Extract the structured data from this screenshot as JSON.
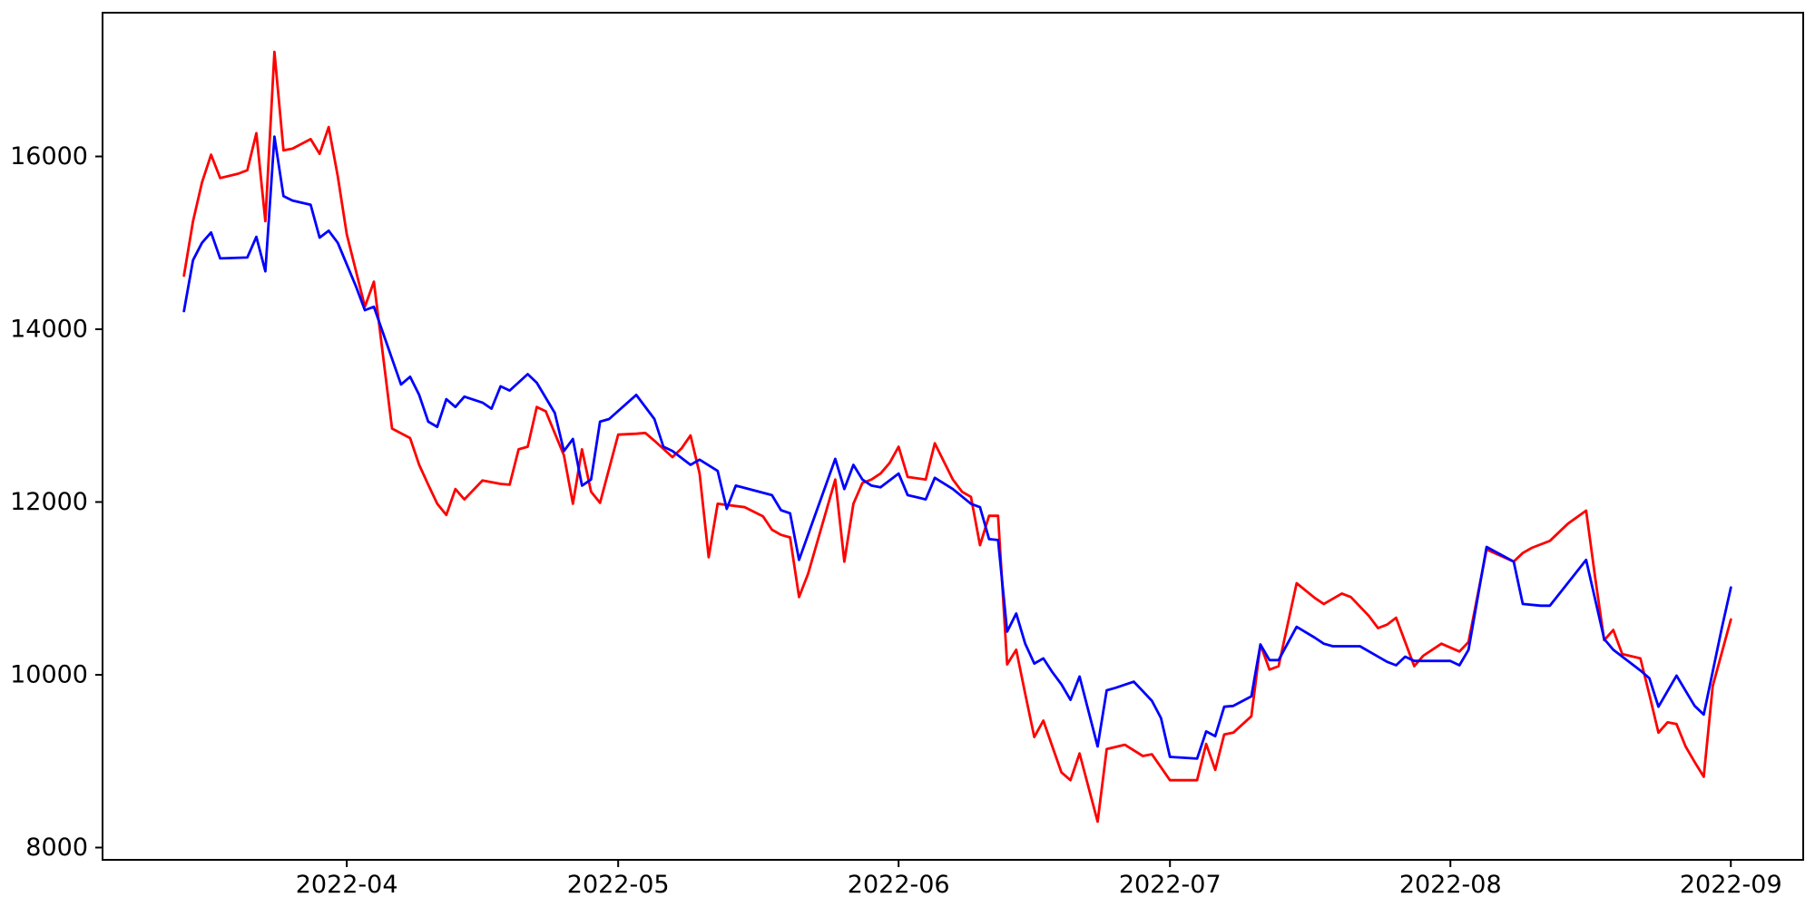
{
  "figure": {
    "background": "#ffffff",
    "axes_edge_color": "#000000"
  },
  "chart_data": {
    "type": "line",
    "title": "",
    "xlabel": "",
    "ylabel": "",
    "grid": false,
    "legend": "none",
    "ylim": [
      7858,
      17664
    ],
    "xlim": [
      "2022-03-05T12:00:00Z",
      "2022-09-09T12:00:00Z"
    ],
    "y_ticks": [
      8000,
      10000,
      12000,
      14000,
      16000
    ],
    "x_ticks": [
      "2022-04-01",
      "2022-05-01",
      "2022-06-01",
      "2022-07-01",
      "2022-08-01",
      "2022-09-01"
    ],
    "x_tick_labels": [
      "2022-04",
      "2022-05",
      "2022-06",
      "2022-07",
      "2022-08",
      "2022-09"
    ],
    "series": [
      {
        "name": "red-series",
        "color": "#ff0000",
        "points": [
          [
            "2022-03-14",
            14620
          ],
          [
            "2022-03-15",
            15250
          ],
          [
            "2022-03-16",
            15700
          ],
          [
            "2022-03-17",
            16020
          ],
          [
            "2022-03-18",
            15750
          ],
          [
            "2022-03-20",
            15800
          ],
          [
            "2022-03-21",
            15840
          ],
          [
            "2022-03-22",
            16270
          ],
          [
            "2022-03-23",
            15250
          ],
          [
            "2022-03-24",
            17210
          ],
          [
            "2022-03-25",
            16070
          ],
          [
            "2022-03-26",
            16090
          ],
          [
            "2022-03-28",
            16200
          ],
          [
            "2022-03-29",
            16030
          ],
          [
            "2022-03-30",
            16340
          ],
          [
            "2022-03-31",
            15770
          ],
          [
            "2022-04-01",
            15100
          ],
          [
            "2022-04-02",
            14680
          ],
          [
            "2022-04-03",
            14260
          ],
          [
            "2022-04-04",
            14550
          ],
          [
            "2022-04-06",
            12850
          ],
          [
            "2022-04-08",
            12740
          ],
          [
            "2022-04-09",
            12430
          ],
          [
            "2022-04-10",
            12200
          ],
          [
            "2022-04-11",
            11980
          ],
          [
            "2022-04-12",
            11850
          ],
          [
            "2022-04-13",
            12150
          ],
          [
            "2022-04-14",
            12030
          ],
          [
            "2022-04-16",
            12250
          ],
          [
            "2022-04-18",
            12210
          ],
          [
            "2022-04-19",
            12200
          ],
          [
            "2022-04-20",
            12610
          ],
          [
            "2022-04-21",
            12640
          ],
          [
            "2022-04-22",
            13100
          ],
          [
            "2022-04-23",
            13050
          ],
          [
            "2022-04-25",
            12540
          ],
          [
            "2022-04-26",
            11980
          ],
          [
            "2022-04-27",
            12610
          ],
          [
            "2022-04-28",
            12120
          ],
          [
            "2022-04-29",
            11990
          ],
          [
            "2022-05-01",
            12780
          ],
          [
            "2022-05-03",
            12790
          ],
          [
            "2022-05-04",
            12800
          ],
          [
            "2022-05-05",
            12710
          ],
          [
            "2022-05-07",
            12520
          ],
          [
            "2022-05-08",
            12620
          ],
          [
            "2022-05-09",
            12770
          ],
          [
            "2022-05-10",
            12330
          ],
          [
            "2022-05-11",
            11360
          ],
          [
            "2022-05-12",
            11980
          ],
          [
            "2022-05-15",
            11940
          ],
          [
            "2022-05-17",
            11835
          ],
          [
            "2022-05-18",
            11680
          ],
          [
            "2022-05-19",
            11620
          ],
          [
            "2022-05-20",
            11590
          ],
          [
            "2022-05-21",
            10900
          ],
          [
            "2022-05-22",
            11170
          ],
          [
            "2022-05-25",
            12260
          ],
          [
            "2022-05-26",
            11310
          ],
          [
            "2022-05-27",
            11980
          ],
          [
            "2022-05-28",
            12220
          ],
          [
            "2022-05-29",
            12260
          ],
          [
            "2022-05-30",
            12330
          ],
          [
            "2022-05-31",
            12450
          ],
          [
            "2022-06-01",
            12640
          ],
          [
            "2022-06-02",
            12290
          ],
          [
            "2022-06-04",
            12260
          ],
          [
            "2022-06-05",
            12680
          ],
          [
            "2022-06-06",
            12470
          ],
          [
            "2022-06-07",
            12260
          ],
          [
            "2022-06-08",
            12120
          ],
          [
            "2022-06-09",
            12060
          ],
          [
            "2022-06-10",
            11500
          ],
          [
            "2022-06-11",
            11840
          ],
          [
            "2022-06-12",
            11840
          ],
          [
            "2022-06-13",
            10120
          ],
          [
            "2022-06-14",
            10290
          ],
          [
            "2022-06-15",
            9780
          ],
          [
            "2022-06-16",
            9280
          ],
          [
            "2022-06-17",
            9470
          ],
          [
            "2022-06-18",
            9170
          ],
          [
            "2022-06-19",
            8870
          ],
          [
            "2022-06-20",
            8780
          ],
          [
            "2022-06-21",
            9090
          ],
          [
            "2022-06-23",
            8300
          ],
          [
            "2022-06-24",
            9140
          ],
          [
            "2022-06-26",
            9190
          ],
          [
            "2022-06-28",
            9060
          ],
          [
            "2022-06-29",
            9080
          ],
          [
            "2022-07-01",
            8780
          ],
          [
            "2022-07-04",
            8780
          ],
          [
            "2022-07-05",
            9200
          ],
          [
            "2022-07-06",
            8900
          ],
          [
            "2022-07-07",
            9310
          ],
          [
            "2022-07-08",
            9330
          ],
          [
            "2022-07-10",
            9520
          ],
          [
            "2022-07-11",
            10350
          ],
          [
            "2022-07-12",
            10060
          ],
          [
            "2022-07-13",
            10100
          ],
          [
            "2022-07-15",
            11060
          ],
          [
            "2022-07-17",
            10890
          ],
          [
            "2022-07-18",
            10820
          ],
          [
            "2022-07-20",
            10940
          ],
          [
            "2022-07-21",
            10900
          ],
          [
            "2022-07-23",
            10680
          ],
          [
            "2022-07-24",
            10540
          ],
          [
            "2022-07-25",
            10580
          ],
          [
            "2022-07-26",
            10660
          ],
          [
            "2022-07-28",
            10100
          ],
          [
            "2022-07-29",
            10220
          ],
          [
            "2022-07-31",
            10360
          ],
          [
            "2022-08-02",
            10270
          ],
          [
            "2022-08-03",
            10380
          ],
          [
            "2022-08-05",
            11450
          ],
          [
            "2022-08-08",
            11310
          ],
          [
            "2022-08-09",
            11410
          ],
          [
            "2022-08-10",
            11470
          ],
          [
            "2022-08-12",
            11550
          ],
          [
            "2022-08-14",
            11750
          ],
          [
            "2022-08-16",
            11900
          ],
          [
            "2022-08-17",
            11130
          ],
          [
            "2022-08-18",
            10400
          ],
          [
            "2022-08-19",
            10520
          ],
          [
            "2022-08-20",
            10240
          ],
          [
            "2022-08-22",
            10190
          ],
          [
            "2022-08-23",
            9770
          ],
          [
            "2022-08-24",
            9330
          ],
          [
            "2022-08-25",
            9450
          ],
          [
            "2022-08-26",
            9430
          ],
          [
            "2022-08-27",
            9170
          ],
          [
            "2022-08-28",
            8990
          ],
          [
            "2022-08-29",
            8820
          ],
          [
            "2022-08-30",
            9870
          ],
          [
            "2022-09-01",
            10640
          ]
        ]
      },
      {
        "name": "blue-series",
        "color": "#0000ff",
        "points": [
          [
            "2022-03-14",
            14210
          ],
          [
            "2022-03-15",
            14800
          ],
          [
            "2022-03-16",
            15000
          ],
          [
            "2022-03-17",
            15120
          ],
          [
            "2022-03-18",
            14820
          ],
          [
            "2022-03-21",
            14830
          ],
          [
            "2022-03-22",
            15070
          ],
          [
            "2022-03-23",
            14670
          ],
          [
            "2022-03-24",
            16230
          ],
          [
            "2022-03-25",
            15540
          ],
          [
            "2022-03-26",
            15490
          ],
          [
            "2022-03-28",
            15440
          ],
          [
            "2022-03-29",
            15060
          ],
          [
            "2022-03-30",
            15140
          ],
          [
            "2022-03-31",
            15000
          ],
          [
            "2022-04-02",
            14500
          ],
          [
            "2022-04-03",
            14220
          ],
          [
            "2022-04-04",
            14260
          ],
          [
            "2022-04-07",
            13360
          ],
          [
            "2022-04-08",
            13450
          ],
          [
            "2022-04-09",
            13240
          ],
          [
            "2022-04-10",
            12930
          ],
          [
            "2022-04-11",
            12870
          ],
          [
            "2022-04-12",
            13190
          ],
          [
            "2022-04-13",
            13100
          ],
          [
            "2022-04-14",
            13220
          ],
          [
            "2022-04-16",
            13150
          ],
          [
            "2022-04-17",
            13080
          ],
          [
            "2022-04-18",
            13340
          ],
          [
            "2022-04-19",
            13290
          ],
          [
            "2022-04-21",
            13480
          ],
          [
            "2022-04-22",
            13380
          ],
          [
            "2022-04-24",
            13030
          ],
          [
            "2022-04-25",
            12590
          ],
          [
            "2022-04-26",
            12730
          ],
          [
            "2022-04-27",
            12190
          ],
          [
            "2022-04-28",
            12260
          ],
          [
            "2022-04-29",
            12930
          ],
          [
            "2022-04-30",
            12960
          ],
          [
            "2022-05-03",
            13240
          ],
          [
            "2022-05-05",
            12960
          ],
          [
            "2022-05-06",
            12640
          ],
          [
            "2022-05-07",
            12590
          ],
          [
            "2022-05-09",
            12430
          ],
          [
            "2022-05-10",
            12490
          ],
          [
            "2022-05-12",
            12360
          ],
          [
            "2022-05-13",
            11920
          ],
          [
            "2022-05-14",
            12190
          ],
          [
            "2022-05-18",
            12080
          ],
          [
            "2022-05-19",
            11905
          ],
          [
            "2022-05-20",
            11870
          ],
          [
            "2022-05-21",
            11330
          ],
          [
            "2022-05-25",
            12500
          ],
          [
            "2022-05-26",
            12150
          ],
          [
            "2022-05-27",
            12430
          ],
          [
            "2022-05-28",
            12260
          ],
          [
            "2022-05-29",
            12190
          ],
          [
            "2022-05-30",
            12170
          ],
          [
            "2022-06-01",
            12330
          ],
          [
            "2022-06-02",
            12080
          ],
          [
            "2022-06-04",
            12030
          ],
          [
            "2022-06-05",
            12280
          ],
          [
            "2022-06-07",
            12150
          ],
          [
            "2022-06-09",
            11980
          ],
          [
            "2022-06-10",
            11940
          ],
          [
            "2022-06-11",
            11570
          ],
          [
            "2022-06-12",
            11560
          ],
          [
            "2022-06-13",
            10500
          ],
          [
            "2022-06-14",
            10710
          ],
          [
            "2022-06-15",
            10360
          ],
          [
            "2022-06-16",
            10130
          ],
          [
            "2022-06-17",
            10190
          ],
          [
            "2022-06-18",
            10030
          ],
          [
            "2022-06-19",
            9890
          ],
          [
            "2022-06-20",
            9710
          ],
          [
            "2022-06-21",
            9980
          ],
          [
            "2022-06-23",
            9170
          ],
          [
            "2022-06-24",
            9820
          ],
          [
            "2022-06-25",
            9850
          ],
          [
            "2022-06-27",
            9920
          ],
          [
            "2022-06-29",
            9700
          ],
          [
            "2022-06-30",
            9500
          ],
          [
            "2022-07-01",
            9050
          ],
          [
            "2022-07-04",
            9030
          ],
          [
            "2022-07-05",
            9345
          ],
          [
            "2022-07-06",
            9290
          ],
          [
            "2022-07-07",
            9630
          ],
          [
            "2022-07-08",
            9640
          ],
          [
            "2022-07-10",
            9750
          ],
          [
            "2022-07-11",
            10350
          ],
          [
            "2022-07-12",
            10170
          ],
          [
            "2022-07-13",
            10170
          ],
          [
            "2022-07-15",
            10555
          ],
          [
            "2022-07-17",
            10430
          ],
          [
            "2022-07-18",
            10360
          ],
          [
            "2022-07-19",
            10330
          ],
          [
            "2022-07-22",
            10330
          ],
          [
            "2022-07-25",
            10150
          ],
          [
            "2022-07-26",
            10110
          ],
          [
            "2022-07-27",
            10210
          ],
          [
            "2022-07-28",
            10160
          ],
          [
            "2022-08-01",
            10160
          ],
          [
            "2022-08-02",
            10110
          ],
          [
            "2022-08-03",
            10290
          ],
          [
            "2022-08-05",
            11480
          ],
          [
            "2022-08-08",
            11310
          ],
          [
            "2022-08-09",
            10820
          ],
          [
            "2022-08-11",
            10800
          ],
          [
            "2022-08-12",
            10800
          ],
          [
            "2022-08-16",
            11330
          ],
          [
            "2022-08-18",
            10415
          ],
          [
            "2022-08-19",
            10290
          ],
          [
            "2022-08-22",
            10050
          ],
          [
            "2022-08-23",
            9960
          ],
          [
            "2022-08-24",
            9630
          ],
          [
            "2022-08-26",
            9990
          ],
          [
            "2022-08-28",
            9640
          ],
          [
            "2022-08-29",
            9540
          ],
          [
            "2022-08-31",
            10540
          ],
          [
            "2022-09-01",
            11010
          ]
        ]
      }
    ]
  }
}
